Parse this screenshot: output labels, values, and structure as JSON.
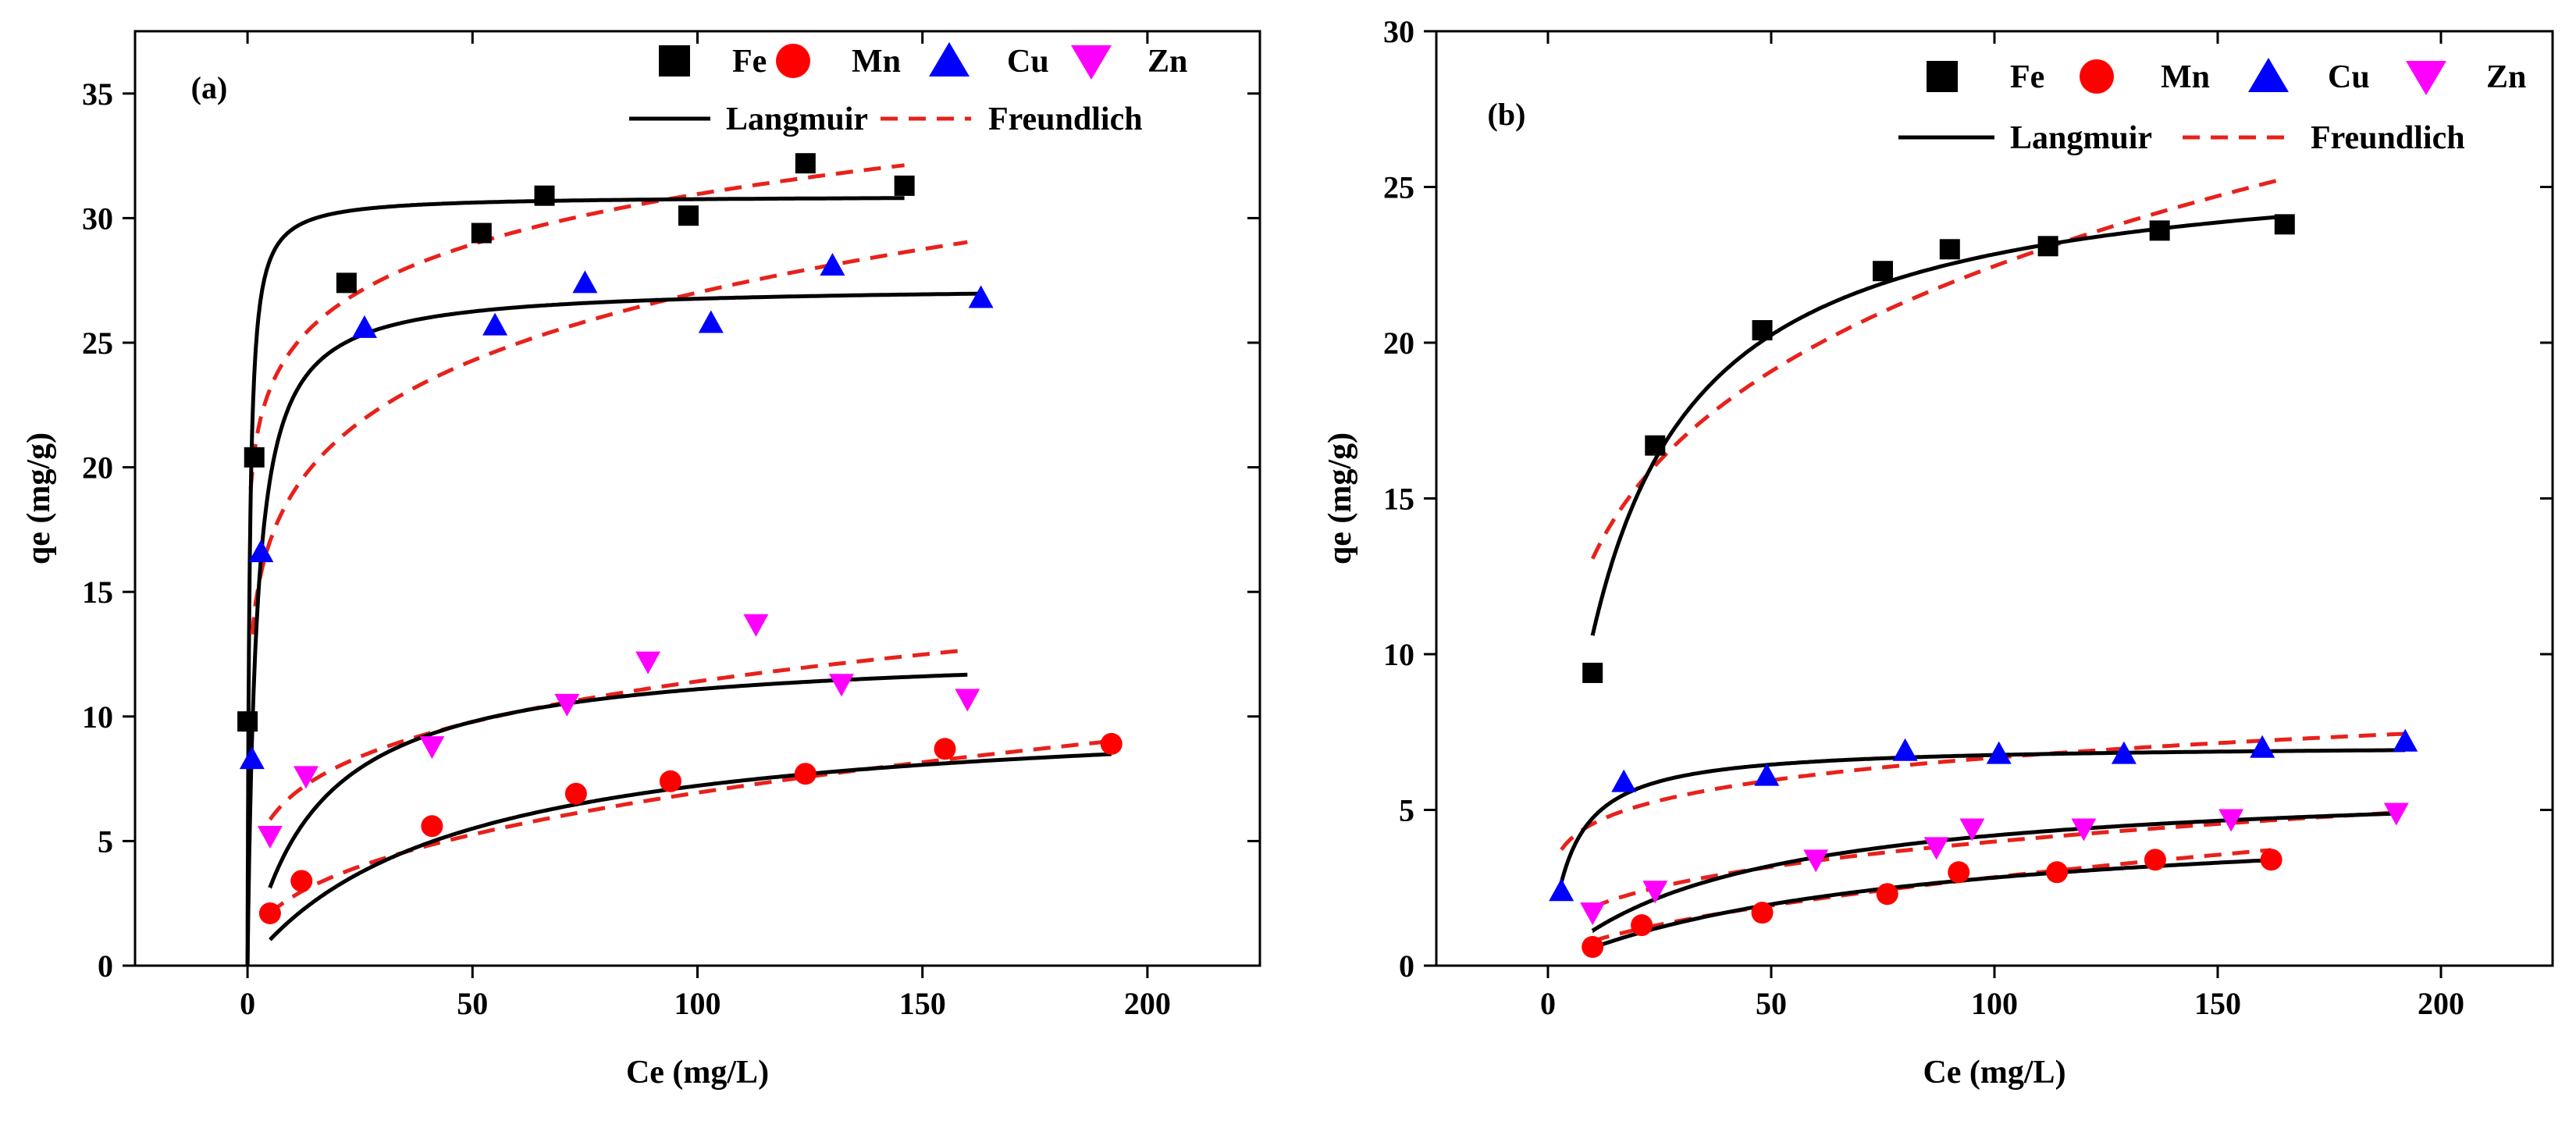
{
  "chart_data": [
    {
      "type": "scatter",
      "panel_label": "(a)",
      "xlabel": "Ce (mg/L)",
      "ylabel": "qe (mg/g)",
      "xlim": [
        -25,
        225
      ],
      "ylim": [
        0,
        37.5
      ],
      "xticks": [
        0,
        50,
        100,
        150,
        200
      ],
      "xtick_labels": [
        "0",
        "50",
        "100",
        "150",
        "200"
      ],
      "yticks": [
        0,
        5,
        10,
        15,
        20,
        25,
        30,
        35
      ],
      "ytick_labels": [
        "0",
        "5",
        "10",
        "15",
        "20",
        "25",
        "30",
        "35"
      ],
      "legend": [
        "Fe",
        "Mn",
        "Cu",
        "Zn",
        "Langmuir",
        "Freundlich"
      ],
      "series": [
        {
          "name": "Fe",
          "color": "#000000",
          "marker": "square",
          "x": [
            0,
            1.5,
            22,
            52,
            66,
            98,
            124,
            146
          ],
          "y": [
            9.8,
            20.4,
            27.4,
            29.4,
            30.9,
            30.1,
            32.2,
            31.3
          ],
          "langmuir": {
            "qm": 30.9,
            "kl": 2.2,
            "xmin": 0,
            "xmax": 146
          },
          "freundlich": {
            "kf": 19.8,
            "n": 10.3,
            "xmin": 0.7,
            "xmax": 146
          }
        },
        {
          "name": "Cu",
          "color": "#0000ff",
          "marker": "triangle-up",
          "x": [
            1,
            3,
            26,
            55,
            75,
            103,
            130,
            163
          ],
          "y": [
            8.3,
            16.6,
            25.6,
            25.7,
            27.4,
            25.8,
            28.1,
            26.8
          ],
          "langmuir": {
            "qm": 27.3,
            "kl": 0.5,
            "xmin": 0,
            "xmax": 163
          },
          "freundlich": {
            "kf": 13.3,
            "n": 6.5,
            "xmin": 1,
            "xmax": 160
          }
        },
        {
          "name": "Zn",
          "color": "#ff00ff",
          "marker": "triangle-down",
          "x": [
            5,
            13,
            41,
            71,
            89,
            113,
            132,
            160
          ],
          "y": [
            5.2,
            7.6,
            8.8,
            10.5,
            12.2,
            13.7,
            11.3,
            10.7
          ],
          "langmuir": {
            "qm": 12.8,
            "kl": 0.065,
            "xmin": 5,
            "xmax": 160
          },
          "freundlich": {
            "kf": 4.1,
            "n": 4.5,
            "xmin": 5,
            "xmax": 160
          }
        },
        {
          "name": "Mn",
          "color": "#ff0000",
          "marker": "circle",
          "x": [
            5,
            12,
            41,
            73,
            94,
            124,
            155,
            192
          ],
          "y": [
            2.1,
            3.4,
            5.6,
            6.9,
            7.4,
            7.7,
            8.7,
            8.9
          ],
          "langmuir": {
            "qm": 10.5,
            "kl": 0.022,
            "xmin": 5,
            "xmax": 192
          },
          "freundlich": {
            "kf": 1.1,
            "n": 2.5,
            "xmin": 5,
            "xmax": 192
          }
        }
      ]
    },
    {
      "type": "scatter",
      "panel_label": "(b)",
      "xlabel": "Ce (mg/L)",
      "ylabel": "qe (mg/g)",
      "xlim": [
        -25,
        225
      ],
      "ylim": [
        0,
        30
      ],
      "xticks": [
        0,
        50,
        100,
        150,
        200
      ],
      "xtick_labels": [
        "0",
        "50",
        "100",
        "150",
        "200"
      ],
      "yticks": [
        0,
        5,
        10,
        15,
        20,
        25,
        30
      ],
      "ytick_labels": [
        "0",
        "5",
        "10",
        "15",
        "20",
        "25",
        "30"
      ],
      "legend": [
        "Fe",
        "Mn",
        "Cu",
        "Zn",
        "Langmuir",
        "Freundlich"
      ],
      "series": [
        {
          "name": "Fe",
          "color": "#000000",
          "marker": "square",
          "x": [
            10,
            24,
            48,
            75,
            90,
            112,
            137,
            165
          ],
          "y": [
            9.4,
            16.7,
            20.4,
            22.3,
            23.0,
            23.1,
            23.6,
            23.8
          ],
          "langmuir": {
            "qm": 26.2,
            "kl": 0.068,
            "xmin": 10,
            "xmax": 165
          },
          "freundlich": {
            "kf": 7.6,
            "n": 4.25,
            "xmin": 10,
            "xmax": 165
          }
        },
        {
          "name": "Cu",
          "color": "#0000ff",
          "marker": "triangle-up",
          "x": [
            3,
            17,
            49,
            80,
            101,
            129,
            160,
            192
          ],
          "y": [
            2.4,
            5.9,
            6.1,
            6.9,
            6.8,
            6.8,
            7.0,
            7.2
          ],
          "langmuir": {
            "qm": 7.1,
            "kl": 0.2,
            "xmin": 3,
            "xmax": 192
          },
          "freundlich": {
            "kf": 3.1,
            "n": 6.0,
            "xmin": 3,
            "xmax": 192
          }
        },
        {
          "name": "Zn",
          "color": "#ff00ff",
          "marker": "triangle-down",
          "x": [
            10,
            24,
            60,
            87,
            95,
            120,
            153,
            190
          ],
          "y": [
            1.7,
            2.4,
            3.4,
            3.8,
            4.4,
            4.4,
            4.7,
            4.9
          ],
          "langmuir": {
            "qm": 6.0,
            "kl": 0.023,
            "xmin": 10,
            "xmax": 190
          },
          "freundlich": {
            "kf": 0.88,
            "n": 3.05,
            "xmin": 10,
            "xmax": 190
          }
        },
        {
          "name": "Mn",
          "color": "#ff0000",
          "marker": "circle",
          "x": [
            10,
            21,
            48,
            76,
            92,
            114,
            136,
            162
          ],
          "y": [
            0.6,
            1.3,
            1.7,
            2.3,
            3.0,
            3.0,
            3.4,
            3.4
          ],
          "langmuir": {
            "qm": 5.0,
            "kl": 0.013,
            "xmin": 10,
            "xmax": 162
          },
          "freundlich": {
            "kf": 0.22,
            "n": 1.8,
            "xmin": 10,
            "xmax": 162
          }
        }
      ]
    }
  ]
}
